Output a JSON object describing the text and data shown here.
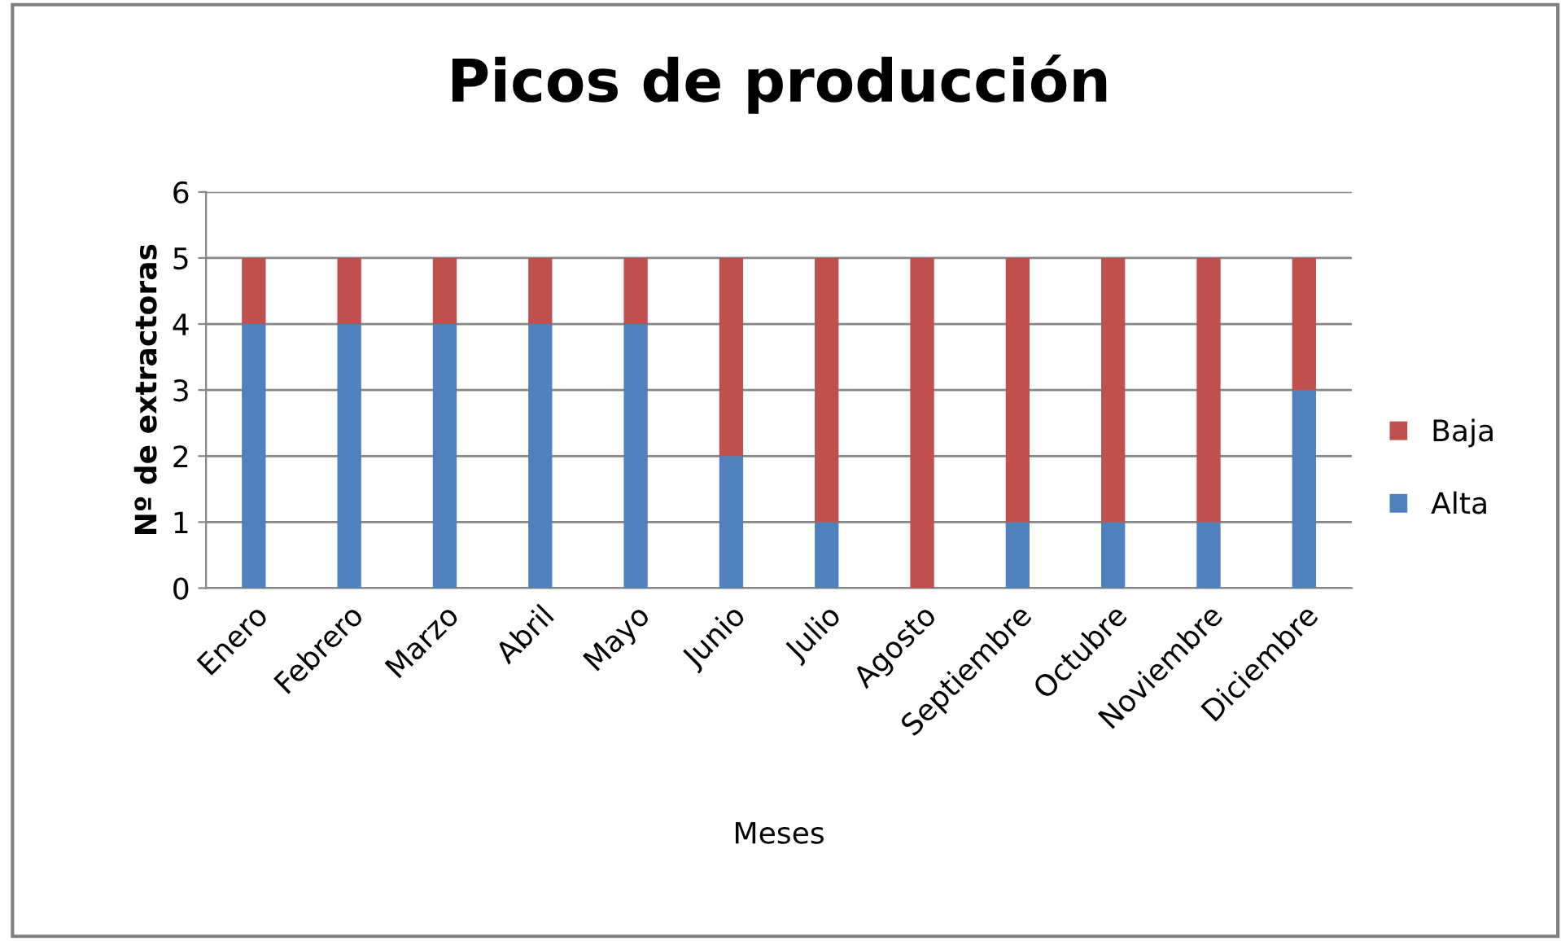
{
  "chart_data": {
    "type": "bar",
    "stacked": true,
    "title": "Picos de producción",
    "xlabel": "Meses",
    "ylabel": "Nº de extractoras",
    "categories": [
      "Enero",
      "Febrero",
      "Marzo",
      "Abril",
      "Mayo",
      "Junio",
      "Julio",
      "Agosto",
      "Septiembre",
      "Octubre",
      "Noviembre",
      "Diciembre"
    ],
    "series": [
      {
        "name": "Alta",
        "color": "#4f81bd",
        "values": [
          4,
          4,
          4,
          4,
          4,
          2,
          1,
          0,
          1,
          1,
          1,
          3
        ]
      },
      {
        "name": "Baja",
        "color": "#c0504d",
        "values": [
          1,
          1,
          1,
          1,
          1,
          3,
          4,
          5,
          4,
          4,
          4,
          2
        ]
      }
    ],
    "ylim": [
      0,
      6
    ],
    "yticks": [
      0,
      1,
      2,
      3,
      4,
      5,
      6
    ],
    "grid": "y",
    "legend": "right"
  }
}
